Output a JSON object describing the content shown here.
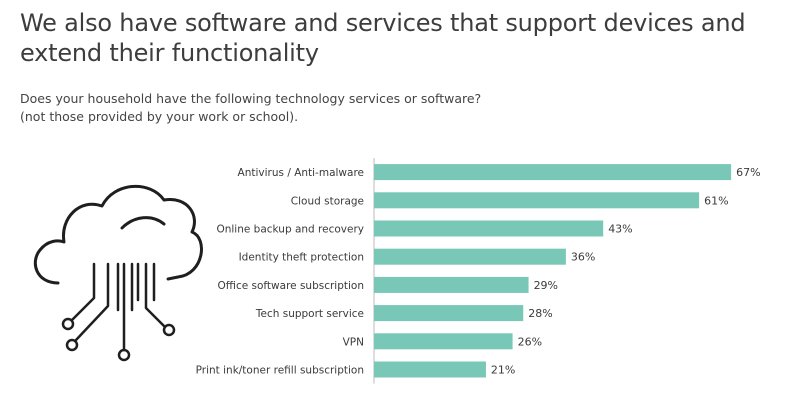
{
  "title": "We also have software and services that support devices and extend their functionality",
  "subtitle": {
    "line1": "Does your household have the following technology services or software?",
    "line2": "(not those provided by your work or school)."
  },
  "icon": "cloud-network-icon",
  "colors": {
    "bar": "#79c7b7",
    "text": "#3a3a3a",
    "axis": "#bbbbbb"
  },
  "chart_data": {
    "type": "bar",
    "orientation": "horizontal",
    "categories": [
      "Antivirus / Anti-malware",
      "Cloud storage",
      "Online backup and recovery",
      "Identity theft protection",
      "Office software subscription",
      "Tech support service",
      "VPN",
      "Print ink/toner refill subscription"
    ],
    "values": [
      67,
      61,
      43,
      36,
      29,
      28,
      26,
      21
    ],
    "value_labels": [
      "67%",
      "61%",
      "43%",
      "36%",
      "29%",
      "28%",
      "26%",
      "21%"
    ],
    "unit": "%",
    "xlim": [
      0,
      100
    ],
    "grid": false,
    "legend": "none"
  }
}
